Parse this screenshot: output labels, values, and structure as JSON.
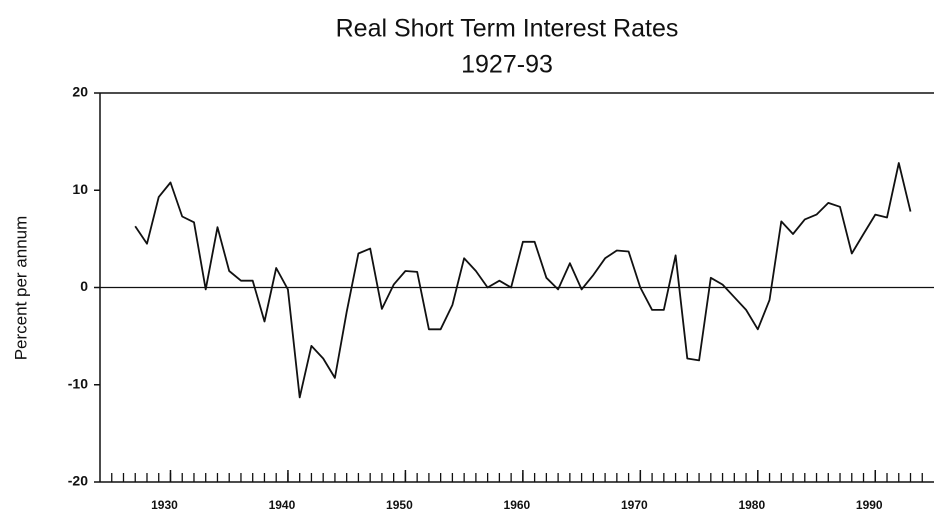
{
  "chart_data": {
    "type": "line",
    "title": "Real Short Term Interest Rates",
    "subtitle": "1927-93",
    "ylabel": "Percent per annum",
    "x": [
      1927,
      1928,
      1929,
      1930,
      1931,
      1932,
      1933,
      1934,
      1935,
      1936,
      1937,
      1938,
      1939,
      1940,
      1941,
      1942,
      1943,
      1944,
      1945,
      1946,
      1947,
      1948,
      1949,
      1950,
      1951,
      1952,
      1953,
      1954,
      1955,
      1956,
      1957,
      1958,
      1959,
      1960,
      1961,
      1962,
      1963,
      1964,
      1965,
      1966,
      1967,
      1968,
      1969,
      1970,
      1971,
      1972,
      1973,
      1974,
      1975,
      1976,
      1977,
      1978,
      1979,
      1980,
      1981,
      1982,
      1983,
      1984,
      1985,
      1986,
      1987,
      1988,
      1989,
      1990,
      1991,
      1992,
      1993
    ],
    "series": [
      {
        "color": "#111111",
        "values": [
          6.3,
          4.5,
          9.3,
          10.8,
          7.3,
          6.7,
          -0.2,
          6.2,
          1.7,
          0.7,
          0.7,
          -3.5,
          2.0,
          -0.2,
          -11.3,
          -6.0,
          -7.3,
          -9.3,
          -2.5,
          3.5,
          4.0,
          -2.2,
          0.3,
          1.7,
          1.6,
          -4.3,
          -4.3,
          -1.8,
          3.0,
          1.7,
          0.0,
          0.7,
          0.0,
          4.7,
          4.7,
          1.0,
          -0.2,
          2.5,
          -0.2,
          1.3,
          3.0,
          3.8,
          3.7,
          0.0,
          -2.3,
          -2.3,
          3.3,
          -7.3,
          -7.5,
          1.0,
          0.3,
          -1.0,
          -2.3,
          -4.3,
          -1.3,
          6.8,
          5.5,
          7.0,
          7.5,
          8.7,
          8.3,
          3.5,
          5.5,
          7.5,
          7.2,
          12.8,
          7.8
        ]
      }
    ],
    "xlim": [
      1924,
      1995
    ],
    "xticks": [
      1930,
      1940,
      1950,
      1960,
      1970,
      1980,
      1990
    ],
    "minor_xticks": [
      1925,
      1926,
      1927,
      1928,
      1929,
      1930,
      1931,
      1932,
      1933,
      1934,
      1935,
      1936,
      1937,
      1938,
      1939,
      1940,
      1941,
      1942,
      1943,
      1944,
      1945,
      1946,
      1947,
      1948,
      1949,
      1950,
      1951,
      1952,
      1953,
      1954,
      1955,
      1956,
      1957,
      1958,
      1959,
      1960,
      1961,
      1962,
      1963,
      1964,
      1965,
      1966,
      1967,
      1968,
      1969,
      1970,
      1971,
      1972,
      1973,
      1974,
      1975,
      1976,
      1977,
      1978,
      1979,
      1980,
      1981,
      1982,
      1983,
      1984,
      1985,
      1986,
      1987,
      1988,
      1989,
      1990,
      1991,
      1992,
      1993,
      1994
    ],
    "ylim": [
      -20,
      20
    ],
    "yticks": [
      -20,
      -10,
      0,
      10,
      20
    ],
    "hline": 0
  }
}
